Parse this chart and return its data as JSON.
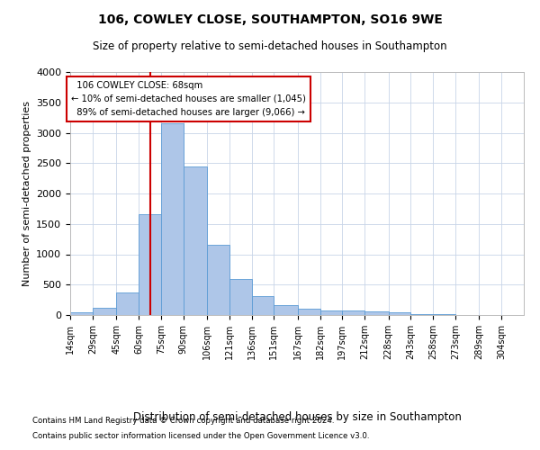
{
  "title": "106, COWLEY CLOSE, SOUTHAMPTON, SO16 9WE",
  "subtitle": "Size of property relative to semi-detached houses in Southampton",
  "xlabel": "Distribution of semi-detached houses by size in Southampton",
  "ylabel": "Number of semi-detached properties",
  "property_size": 68,
  "property_label": "106 COWLEY CLOSE: 68sqm",
  "pct_smaller": "10% of semi-detached houses are smaller (1,045)",
  "pct_larger": "89% of semi-detached houses are larger (9,066)",
  "footnote1": "Contains HM Land Registry data © Crown copyright and database right 2024.",
  "footnote2": "Contains public sector information licensed under the Open Government Licence v3.0.",
  "bar_color": "#aec6e8",
  "bar_edge_color": "#5b9bd5",
  "redline_color": "#cc0000",
  "annotation_box_color": "#ffffff",
  "annotation_box_edge": "#cc0000",
  "background_color": "#ffffff",
  "grid_color": "#c8d4e8",
  "bin_edges": [
    14,
    29,
    45,
    60,
    75,
    90,
    106,
    121,
    136,
    151,
    167,
    182,
    197,
    212,
    228,
    243,
    258,
    273,
    289,
    304,
    319
  ],
  "bar_heights": [
    50,
    120,
    370,
    1660,
    3150,
    2450,
    1150,
    600,
    310,
    160,
    110,
    80,
    70,
    55,
    40,
    20,
    10,
    5,
    3,
    2
  ],
  "ylim": [
    0,
    4000
  ],
  "yticks": [
    0,
    500,
    1000,
    1500,
    2000,
    2500,
    3000,
    3500,
    4000
  ],
  "figsize": [
    6.0,
    5.0
  ],
  "dpi": 100
}
